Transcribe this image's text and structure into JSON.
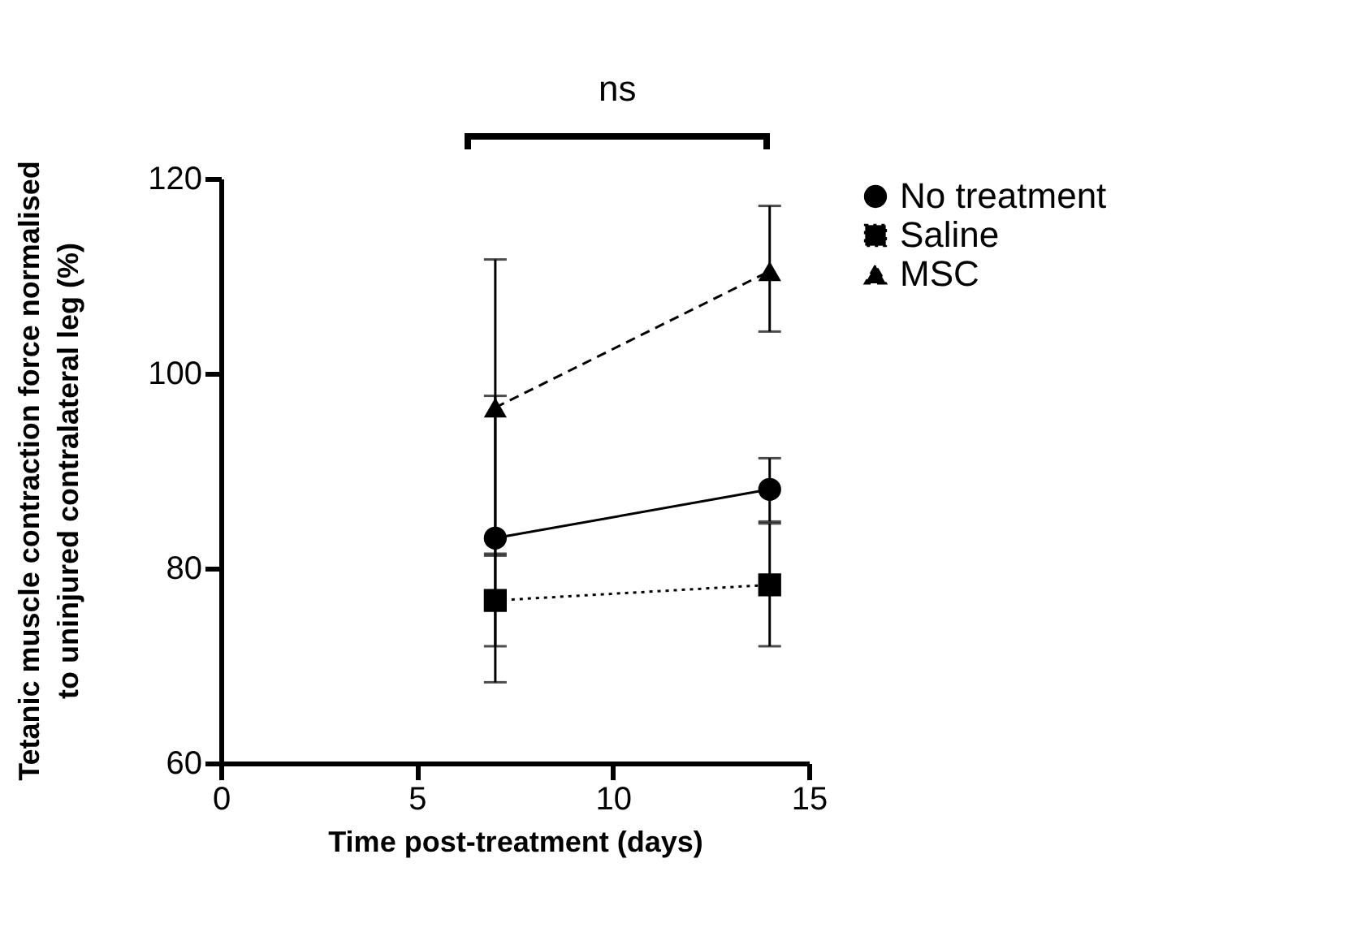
{
  "chart_data": {
    "type": "line",
    "xlabel": "Time post-treatment (days)",
    "ylabel": "Tetanic muscle contraction force normalised to uninjured contralateral leg (%)",
    "x": [
      7,
      14
    ],
    "xlim": [
      0,
      15
    ],
    "xticks": [
      0,
      5,
      10,
      15
    ],
    "ylim": [
      60,
      120
    ],
    "yticks": [
      60,
      80,
      100,
      120
    ],
    "series": [
      {
        "name": "No treatment",
        "color": "#000000",
        "marker": "circle",
        "line_style": "solid",
        "values": [
          83.1,
          88.1
        ],
        "errors": [
          [
            68.3,
            97.7
          ],
          [
            84.8,
            91.3
          ]
        ]
      },
      {
        "name": "Saline",
        "color": "#000000",
        "marker": "square",
        "line_style": "dotted",
        "values": [
          76.7,
          78.3
        ],
        "errors": [
          [
            72.0,
            81.5
          ],
          [
            72.0,
            84.6
          ]
        ]
      },
      {
        "name": "MSC",
        "color": "#000000",
        "marker": "triangle",
        "line_style": "dashed",
        "values": [
          96.5,
          110.5
        ],
        "errors": [
          [
            81.3,
            111.7
          ],
          [
            104.3,
            117.2
          ]
        ]
      }
    ],
    "annotations": [
      "ns"
    ],
    "grid": false,
    "legend": "right"
  }
}
